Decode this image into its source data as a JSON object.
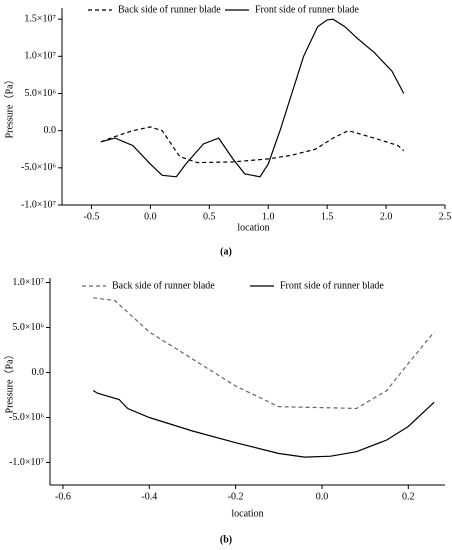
{
  "chart_data": [
    {
      "type": "line",
      "caption": "(a)",
      "xlabel": "location",
      "ylabel": "Pressure（Pa）",
      "xlim": [
        -0.75,
        2.5
      ],
      "ylim": [
        -10000000,
        16500000
      ],
      "xticks": [
        -0.5,
        {
          "value": 0,
          "label": "0.0"
        },
        0.5,
        {
          "value": 1,
          "label": "1.0"
        },
        1.5,
        {
          "value": 2,
          "label": "2.0"
        },
        2.5
      ],
      "yticks": [
        {
          "value": -10000000,
          "label": "-1.0×10⁷"
        },
        {
          "value": -5000000,
          "label": "-5.0×10⁶"
        },
        {
          "value": 0,
          "label": "0.0"
        },
        {
          "value": 5000000,
          "label": "5.0×10⁶"
        },
        {
          "value": 10000000,
          "label": "1.0×10⁷"
        },
        {
          "value": 15000000,
          "label": "1.5×10⁷"
        }
      ],
      "series": [
        {
          "name": "Back side of runner blade",
          "color": "#000000",
          "dash": true,
          "x": [
            -0.42,
            -0.3,
            -0.15,
            0.0,
            0.1,
            0.25,
            0.4,
            0.7,
            1.0,
            1.2,
            1.4,
            1.55,
            1.68,
            1.9,
            2.1,
            2.15
          ],
          "values": [
            -1500000,
            -800000,
            0,
            500000,
            0,
            -3500000,
            -4300000,
            -4200000,
            -3800000,
            -3300000,
            -2500000,
            -1000000,
            0,
            -1000000,
            -2000000,
            -2700000
          ]
        },
        {
          "name": "Front side of runner blade",
          "color": "#000000",
          "dash": false,
          "x": [
            -0.42,
            -0.3,
            -0.15,
            0.0,
            0.1,
            0.22,
            0.3,
            0.45,
            0.58,
            0.7,
            0.8,
            0.93,
            1.0,
            1.1,
            1.2,
            1.3,
            1.42,
            1.5,
            1.55,
            1.65,
            1.75,
            1.9,
            2.05,
            2.15
          ],
          "values": [
            -1500000,
            -1000000,
            -2000000,
            -4500000,
            -6000000,
            -6200000,
            -4500000,
            -1800000,
            -1000000,
            -3800000,
            -5800000,
            -6200000,
            -4500000,
            0,
            5000000,
            10000000,
            14000000,
            14900000,
            15000000,
            14000000,
            12500000,
            10500000,
            8000000,
            5000000
          ]
        }
      ]
    },
    {
      "type": "line",
      "caption": "(b)",
      "xlabel": "location",
      "ylabel": "Pressure（Pa）",
      "xlim": [
        -0.63,
        0.285
      ],
      "ylim": [
        -12500000,
        10500000
      ],
      "xticks": [
        -0.6,
        -0.4,
        -0.2,
        {
          "value": 0,
          "label": "0.0"
        },
        0.2
      ],
      "yticks": [
        {
          "value": -10000000,
          "label": "-1.0×10⁷"
        },
        {
          "value": -5000000,
          "label": "-5.0×10⁶"
        },
        {
          "value": 0,
          "label": "0.0"
        },
        {
          "value": 5000000,
          "label": "5.0×10⁶"
        },
        {
          "value": 10000000,
          "label": "1.0×10⁷"
        }
      ],
      "series": [
        {
          "name": "Back side of runner blade",
          "color": "#666666",
          "dash": true,
          "x": [
            -0.53,
            -0.48,
            -0.4,
            -0.3,
            -0.2,
            -0.1,
            0.0,
            0.08,
            0.15,
            0.2,
            0.26
          ],
          "values": [
            8300000,
            8000000,
            4500000,
            1500000,
            -1500000,
            -3800000,
            -3900000,
            -4000000,
            -2000000,
            1000000,
            4500000
          ]
        },
        {
          "name": "Front side of runner blade",
          "color": "#000000",
          "dash": false,
          "x": [
            -0.53,
            -0.52,
            -0.47,
            -0.45,
            -0.4,
            -0.3,
            -0.2,
            -0.1,
            -0.04,
            0.02,
            0.08,
            0.15,
            0.2,
            0.26
          ],
          "values": [
            -2000000,
            -2300000,
            -3000000,
            -4000000,
            -5000000,
            -6500000,
            -7800000,
            -9000000,
            -9400000,
            -9300000,
            -8800000,
            -7500000,
            -6000000,
            -3300000
          ]
        }
      ]
    }
  ]
}
